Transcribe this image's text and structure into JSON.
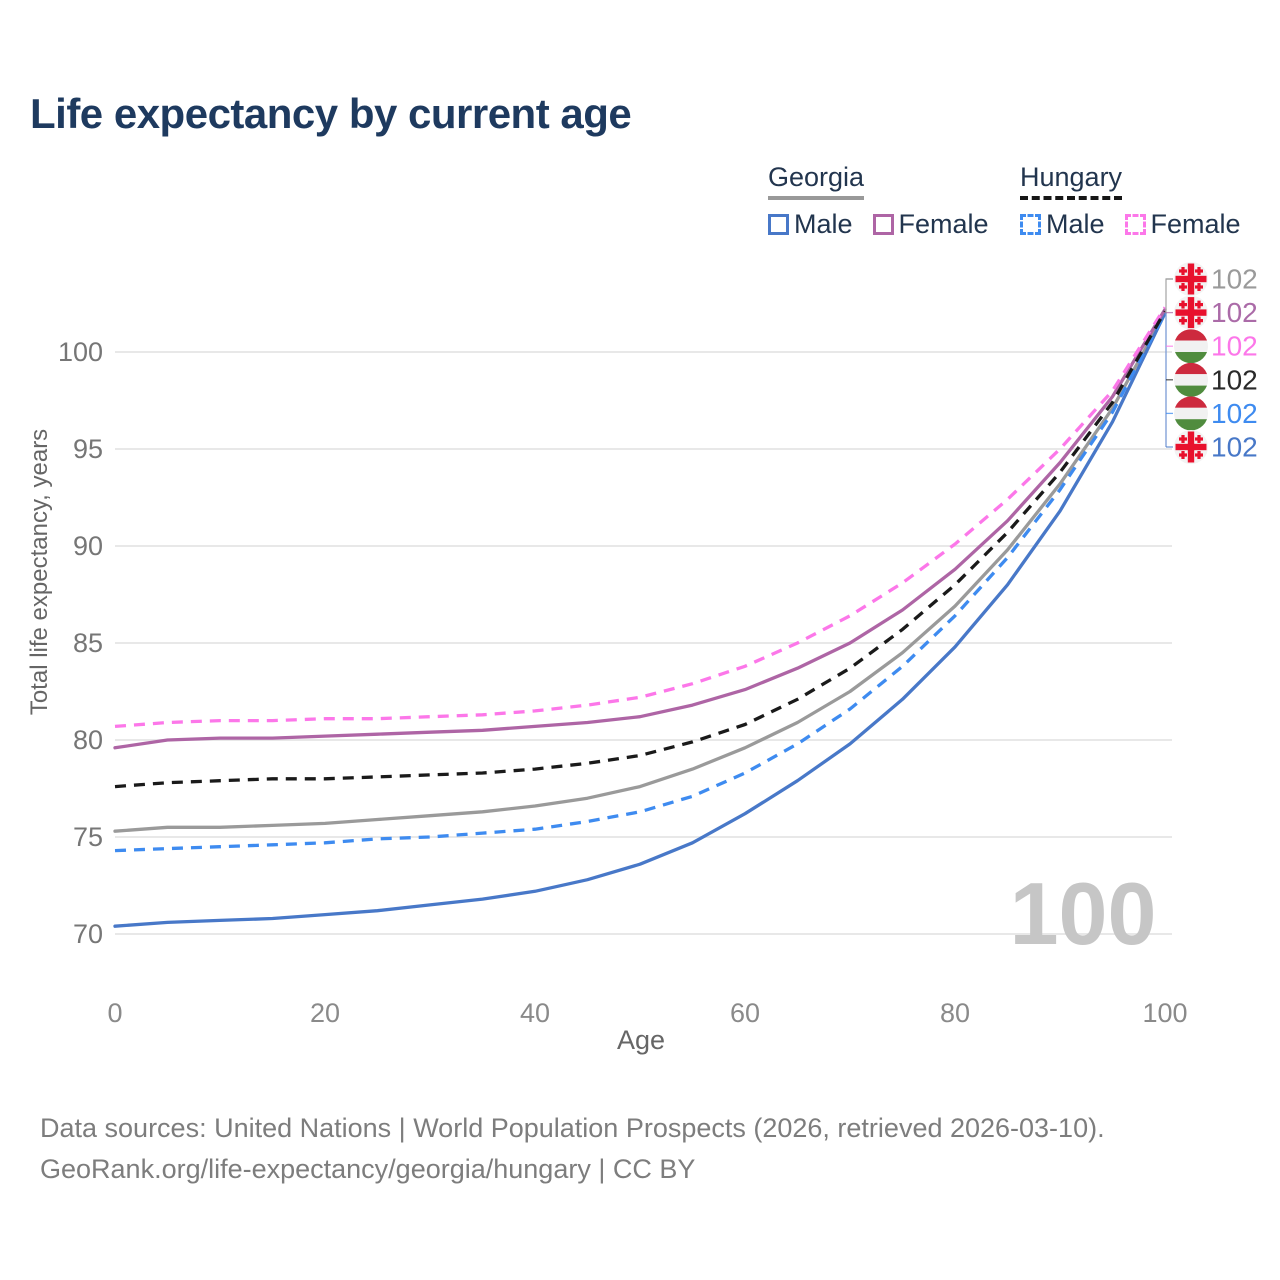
{
  "title": "Life expectancy by current age",
  "legend": {
    "groups": [
      {
        "name": "Georgia",
        "line_style": "solid",
        "underline_color": "#999999",
        "items": [
          {
            "label": "Male",
            "color": "#4878c8",
            "dashed": false
          },
          {
            "label": "Female",
            "color": "#ae65a5",
            "dashed": false
          }
        ]
      },
      {
        "name": "Hungary",
        "line_style": "dashed",
        "underline_color": "#161616",
        "items": [
          {
            "label": "Male",
            "color": "#3e8bf0",
            "dashed": true
          },
          {
            "label": "Female",
            "color": "#fc77e9",
            "dashed": true
          }
        ]
      }
    ]
  },
  "watermark_age": "100",
  "footer": {
    "line1": "Data sources: United Nations | World Population Prospects (2026, retrieved 2026-03-10).",
    "line2": "GeoRank.org/life-expectancy/georgia/hungary | CC BY"
  },
  "chart_data": {
    "type": "line",
    "title": "Life expectancy by current age",
    "xlabel": "Age",
    "ylabel": "Total life expectancy, years",
    "x_ticks": [
      0,
      20,
      40,
      60,
      80,
      100
    ],
    "y_ticks": [
      70,
      75,
      80,
      85,
      90,
      95,
      100
    ],
    "xlim": [
      0,
      100
    ],
    "ylim": [
      69,
      103
    ],
    "grid": "horizontal-only",
    "legend_position": "top-right",
    "x": [
      0,
      5,
      10,
      15,
      20,
      25,
      30,
      35,
      40,
      45,
      50,
      55,
      60,
      65,
      70,
      75,
      80,
      85,
      90,
      95,
      100
    ],
    "series": [
      {
        "id": "georgia-total",
        "name": "Georgia (total)",
        "country": "georgia",
        "color": "#9a9a9a",
        "dashed": false,
        "values": [
          75.3,
          75.5,
          75.5,
          75.6,
          75.7,
          75.9,
          76.1,
          76.3,
          76.6,
          77.0,
          77.6,
          78.5,
          79.6,
          80.9,
          82.5,
          84.5,
          86.9,
          89.8,
          93.2,
          97.1,
          102.0
        ],
        "end_label": "102",
        "end_label_row": 0
      },
      {
        "id": "georgia-male",
        "name": "Georgia Male",
        "country": "georgia",
        "color": "#4878c8",
        "dashed": false,
        "values": [
          70.4,
          70.6,
          70.7,
          70.8,
          71.0,
          71.2,
          71.5,
          71.8,
          72.2,
          72.8,
          73.6,
          74.7,
          76.2,
          77.9,
          79.8,
          82.1,
          84.8,
          88.0,
          91.8,
          96.4,
          102.0
        ],
        "end_label": "102",
        "end_label_row": 5
      },
      {
        "id": "hungary-male",
        "name": "Hungary Male",
        "country": "hungary",
        "color": "#3e8bf0",
        "dashed": true,
        "values": [
          74.3,
          74.4,
          74.5,
          74.6,
          74.7,
          74.9,
          75.0,
          75.2,
          75.4,
          75.8,
          76.3,
          77.1,
          78.3,
          79.8,
          81.6,
          83.8,
          86.4,
          89.4,
          92.9,
          96.9,
          102.0
        ],
        "end_label": "102",
        "end_label_row": 4
      },
      {
        "id": "georgia-female",
        "name": "Georgia Female",
        "country": "georgia",
        "color": "#ae65a5",
        "dashed": false,
        "values": [
          79.6,
          80.0,
          80.1,
          80.1,
          80.2,
          80.3,
          80.4,
          80.5,
          80.7,
          80.9,
          81.2,
          81.8,
          82.6,
          83.7,
          85.0,
          86.7,
          88.8,
          91.3,
          94.3,
          97.7,
          102.2
        ],
        "end_label": "102",
        "end_label_row": 1
      },
      {
        "id": "hungary-female",
        "name": "Hungary Female",
        "country": "hungary",
        "color": "#fc77e9",
        "dashed": true,
        "values": [
          80.7,
          80.9,
          81.0,
          81.0,
          81.1,
          81.1,
          81.2,
          81.3,
          81.5,
          81.8,
          82.2,
          82.9,
          83.8,
          85.0,
          86.4,
          88.1,
          90.1,
          92.4,
          95.0,
          98.0,
          102.3
        ],
        "end_label": "102",
        "end_label_row": 2
      },
      {
        "id": "hungary-total",
        "name": "Hungary (total)",
        "country": "hungary",
        "color": "#1a1a1a",
        "dashed": true,
        "values": [
          77.6,
          77.8,
          77.9,
          78.0,
          78.0,
          78.1,
          78.2,
          78.3,
          78.5,
          78.8,
          79.2,
          79.9,
          80.8,
          82.1,
          83.7,
          85.7,
          88.0,
          90.7,
          93.8,
          97.4,
          102.1
        ],
        "end_label": "102",
        "end_label_row": 3
      }
    ],
    "end_label_rows": [
      {
        "flag": "georgia",
        "text_color": "#9a9a9a"
      },
      {
        "flag": "georgia",
        "text_color": "#ab6ba8"
      },
      {
        "flag": "hungary",
        "text_color": "#fc77e9"
      },
      {
        "flag": "hungary",
        "text_color": "#2a2a2a"
      },
      {
        "flag": "hungary",
        "text_color": "#3e8bf0"
      },
      {
        "flag": "georgia",
        "text_color": "#4878c8"
      }
    ]
  }
}
